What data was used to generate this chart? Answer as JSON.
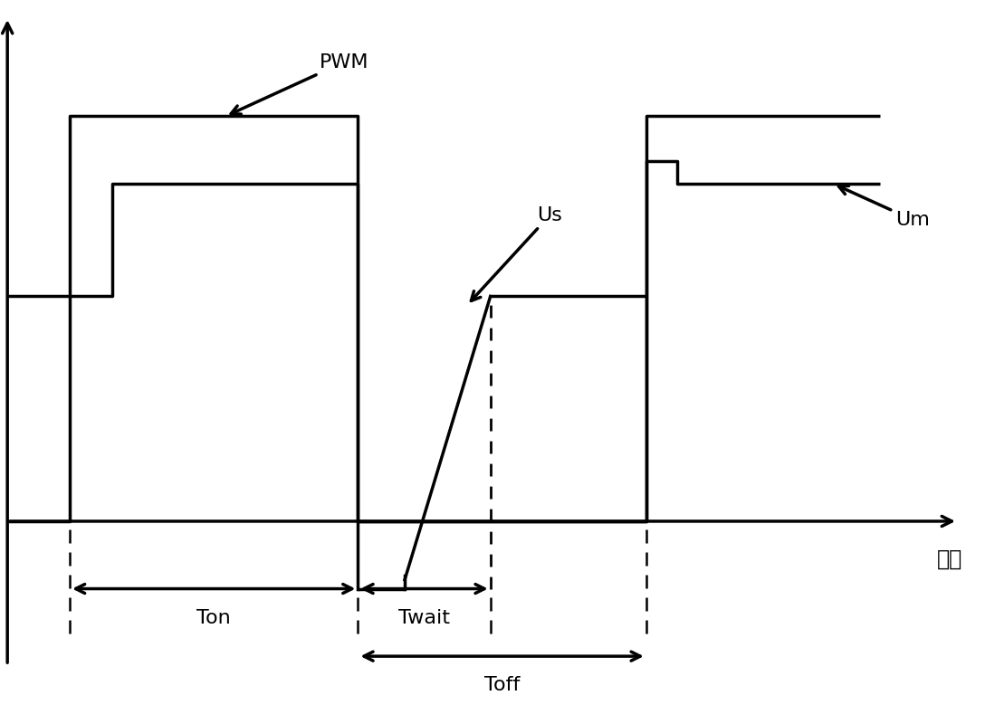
{
  "xlabel": "时间",
  "background_color": "#ffffff",
  "line_color": "#000000",
  "pwm_hi": 9.0,
  "pwm_lo": 0.0,
  "um_hi": 7.5,
  "um_mid": 5.0,
  "um_lo": 0.0,
  "us_hi": 5.0,
  "us_lo": -1.5,
  "t0": 0.8,
  "t1": 4.5,
  "t2": 6.2,
  "t3": 8.2,
  "t4": 11.2,
  "xlim": [
    0,
    12.5
  ],
  "ylim": [
    -4.0,
    11.5
  ],
  "figsize": [
    10.88,
    7.79
  ],
  "dpi": 100
}
